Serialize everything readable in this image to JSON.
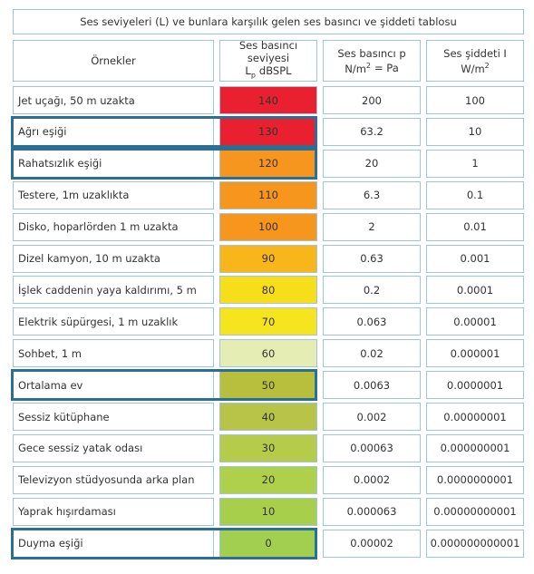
{
  "title": "Ses seviyeleri (L) ve bunlara karşılık gelen ses basıncı ve şiddeti tablosu",
  "header": {
    "examples": "Örnekler",
    "level": {
      "line1": "Ses basıncı seviyesi",
      "symbol": "L",
      "sub": "p",
      "unit": "dBSPL"
    },
    "pressure": {
      "line1": "Ses basıncı p",
      "unit": "N/m",
      "sup": "2",
      "rest": "= Pa"
    },
    "intensity": {
      "line1": "Ses şiddeti I",
      "unit": "W/m",
      "sup": "2"
    }
  },
  "rows": [
    {
      "example": "Jet uçağı, 50 m uzakta",
      "level": "140",
      "pressure": "200",
      "intensity": "100",
      "color": "#e8202f",
      "outlined": false
    },
    {
      "example": "Ağrı eşiği",
      "level": "130",
      "pressure": "63.2",
      "intensity": "10",
      "color": "#e8202f",
      "outlined": true
    },
    {
      "example": "Rahatsızlık eşiği",
      "level": "120",
      "pressure": "20",
      "intensity": "1",
      "color": "#f6961e",
      "outlined": true
    },
    {
      "example": "Testere, 1m uzaklıkta",
      "level": "110",
      "pressure": "6.3",
      "intensity": "0.1",
      "color": "#f7961d",
      "outlined": false
    },
    {
      "example": "Disko, hoparlörden 1 m uzakta",
      "level": "100",
      "pressure": "2",
      "intensity": "0.01",
      "color": "#f7961d",
      "outlined": false
    },
    {
      "example": "Dizel kamyon, 10 m uzakta",
      "level": "90",
      "pressure": "0.63",
      "intensity": "0.001",
      "color": "#f8b61b",
      "outlined": false
    },
    {
      "example": "İşlek caddenin yaya kaldırımı, 5 m",
      "level": "80",
      "pressure": "0.2",
      "intensity": "0.0001",
      "color": "#f7de1a",
      "outlined": false
    },
    {
      "example": "Elektrik süpürgesi, 1 m uzaklık",
      "level": "70",
      "pressure": "0.063",
      "intensity": "0.00001",
      "color": "#f5e41e",
      "outlined": false
    },
    {
      "example": "Sohbet, 1 m",
      "level": "60",
      "pressure": "0.02",
      "intensity": "0.000001",
      "color": "#e6edb4",
      "outlined": false
    },
    {
      "example": "Ortalama ev",
      "level": "50",
      "pressure": "0.0063",
      "intensity": "0.0000001",
      "color": "#b8bf3c",
      "outlined": true
    },
    {
      "example": "Sessiz kütüphane",
      "level": "40",
      "pressure": "0.002",
      "intensity": "0.00000001",
      "color": "#b7c447",
      "outlined": false
    },
    {
      "example": "Gece sessiz yatak odası",
      "level": "30",
      "pressure": "0.00063",
      "intensity": "0.000000001",
      "color": "#b4cc4a",
      "outlined": false
    },
    {
      "example": "Televizyon stüdyosunda arka plan",
      "level": "20",
      "pressure": "0.0002",
      "intensity": "0.0000000001",
      "color": "#afd04b",
      "outlined": false
    },
    {
      "example": "Yaprak hışırdaması",
      "level": "10",
      "pressure": "0.000063",
      "intensity": "0.00000000001",
      "color": "#a8cf4c",
      "outlined": false
    },
    {
      "example": "Duyma eşiği",
      "level": "0",
      "pressure": "0.00002",
      "intensity": "0.000000000001",
      "color": "#a2cf4f",
      "outlined": true
    }
  ]
}
